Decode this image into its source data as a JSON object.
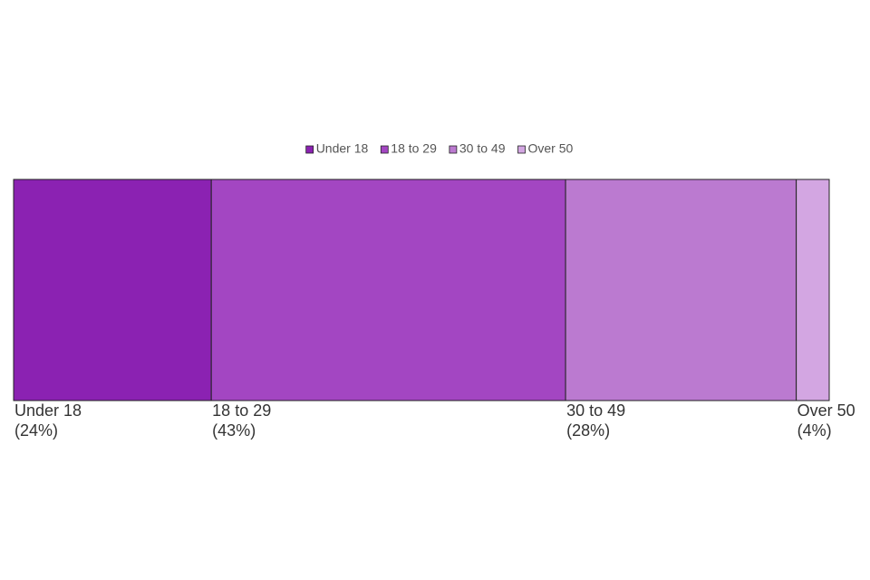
{
  "chart_data": {
    "type": "bar",
    "stacked": true,
    "orientation": "horizontal",
    "series": [
      {
        "name": "Under 18",
        "color": "#8b22b2",
        "values": [
          24
        ],
        "value_labels": [
          "(24%)"
        ]
      },
      {
        "name": "18 to 29",
        "color": "#a346c2",
        "values": [
          43
        ],
        "value_labels": [
          "(43%)"
        ]
      },
      {
        "name": "30 to 49",
        "color": "#bb7ad0",
        "values": [
          28
        ],
        "value_labels": [
          "(28%)"
        ]
      },
      {
        "name": "Over 50",
        "color": "#d3a6e2",
        "values": [
          4
        ],
        "value_labels": [
          "(4%)"
        ]
      }
    ],
    "legend": "top"
  }
}
